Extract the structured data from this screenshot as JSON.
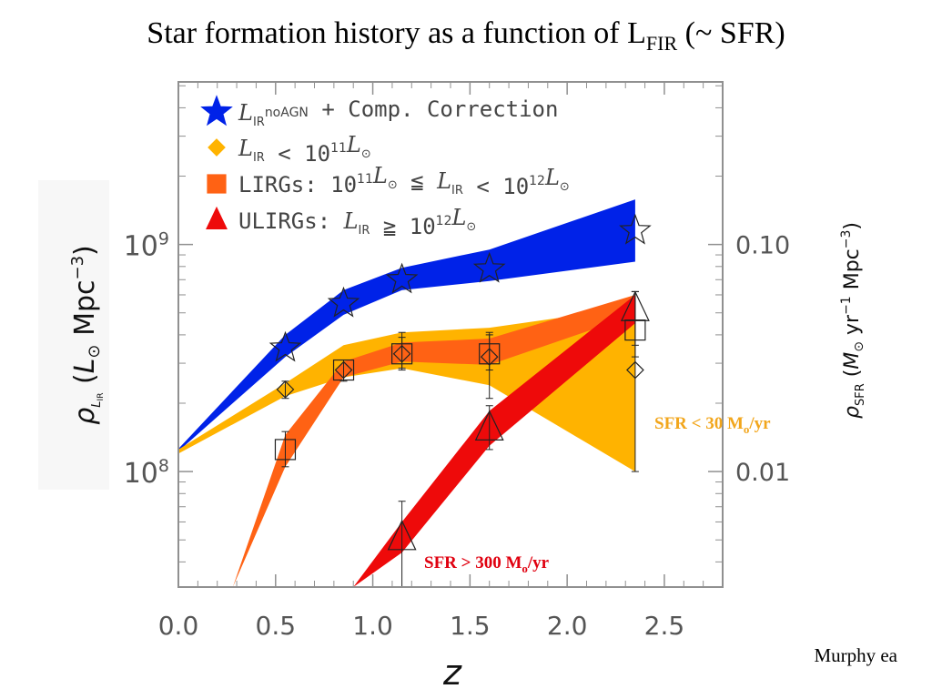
{
  "slide": {
    "title_main": "Star formation history as a function of L",
    "title_sub": "FIR",
    "title_tail": " (~ SFR)",
    "credit": "Murphy ea"
  },
  "annotations": {
    "sfr_low": {
      "text": "SFR < 30 M",
      "sub": "o",
      "unit": "/yr"
    },
    "sfr_high": {
      "text": "SFR > 300 M",
      "sub": "o",
      "unit": "/yr"
    }
  },
  "colors": {
    "all_ir": "#0022e8",
    "low_lir": "#ffb300",
    "lirg": "#ff6214",
    "ulirg": "#ee0a0a",
    "axis": "#909090",
    "sfr_low_text": "#f2a61c",
    "sfr_high_text": "#e0000f"
  },
  "chart_data": {
    "type": "area",
    "xlabel": "z",
    "ylabel": "ρ_{L_IR} (L_⊙ Mpc^-3)",
    "y2label": "ρ_SFR (M_⊙ yr^-1 Mpc^-3)",
    "xlim": [
      0.0,
      2.8
    ],
    "ylim": [
      31000000.0,
      5200000000.0
    ],
    "yscale": "log",
    "x_ticks": [
      "0.0",
      "0.5",
      "1.0",
      "1.5",
      "2.0",
      "2.5"
    ],
    "y_ticks": [
      "10^8",
      "10^9"
    ],
    "y2_ticks": [
      "0.01",
      "0.10"
    ],
    "legend_position": "top-left",
    "grid": false,
    "series": [
      {
        "name": "L_IR^noAGN + Comp. Correction",
        "marker": "star",
        "color_key": "all_ir",
        "band": {
          "x": [
            0.0,
            0.55,
            0.85,
            1.15,
            1.6,
            2.35
          ],
          "lo": [
            123000000.0,
            320000000.0,
            490000000.0,
            630000000.0,
            690000000.0,
            840000000.0
          ],
          "hi": [
            126000000.0,
            400000000.0,
            630000000.0,
            790000000.0,
            950000000.0,
            1580000000.0
          ]
        },
        "points": [
          {
            "x": 0.55,
            "y": 350000000.0
          },
          {
            "x": 0.85,
            "y": 550000000.0
          },
          {
            "x": 1.15,
            "y": 700000000.0
          },
          {
            "x": 1.6,
            "y": 780000000.0
          },
          {
            "x": 2.35,
            "y": 1150000000.0
          }
        ]
      },
      {
        "name": "L_IR < 10^11 L_⊙",
        "marker": "diamond",
        "color_key": "low_lir",
        "band": {
          "x": [
            0.0,
            0.55,
            0.85,
            1.15,
            1.6,
            2.35
          ],
          "lo": [
            120000000.0,
            215000000.0,
            260000000.0,
            285000000.0,
            240000000.0,
            100000000.0
          ],
          "hi": [
            125000000.0,
            245000000.0,
            360000000.0,
            410000000.0,
            430000000.0,
            530000000.0
          ]
        },
        "points": [
          {
            "x": 0.55,
            "y": 230000000.0,
            "err": [
              210000000.0,
              250000000.0
            ]
          },
          {
            "x": 0.85,
            "y": 280000000.0
          },
          {
            "x": 1.15,
            "y": 330000000.0,
            "err": [
              280000000.0,
              390000000.0
            ]
          },
          {
            "x": 1.6,
            "y": 320000000.0,
            "err": [
              210000000.0,
              400000000.0
            ]
          },
          {
            "x": 2.35,
            "y": 280000000.0,
            "err": [
              100000000.0,
              620000000.0
            ]
          }
        ]
      },
      {
        "name": "LIRGs: 10^11 L_⊙ ≦ L_IR < 10^12 L_⊙",
        "marker": "square",
        "color_key": "lirg",
        "band": {
          "x": [
            0.28,
            0.55,
            0.85,
            1.15,
            1.6,
            2.35
          ],
          "lo": [
            31000000.0,
            105000000.0,
            260000000.0,
            305000000.0,
            295000000.0,
            490000000.0
          ],
          "hi": [
            31000000.0,
            145000000.0,
            305000000.0,
            370000000.0,
            385000000.0,
            600000000.0
          ]
        },
        "points": [
          {
            "x": 0.55,
            "y": 125000000.0,
            "err": [
              105000000.0,
              150000000.0
            ]
          },
          {
            "x": 0.85,
            "y": 280000000.0,
            "err": [
              250000000.0,
              310000000.0
            ]
          },
          {
            "x": 1.15,
            "y": 330000000.0,
            "err": [
              285000000.0,
              410000000.0
            ]
          },
          {
            "x": 1.6,
            "y": 330000000.0,
            "err": [
              280000000.0,
              410000000.0
            ]
          },
          {
            "x": 2.35,
            "y": 420000000.0,
            "err": [
              320000000.0,
              620000000.0
            ]
          }
        ]
      },
      {
        "name": "ULIRGs: L_IR ≧ 10^12 L_⊙",
        "marker": "triangle",
        "color_key": "ulirg",
        "band": {
          "x": [
            0.9,
            1.15,
            1.6,
            2.35
          ],
          "lo": [
            31000000.0,
            44000000.0,
            130000000.0,
            450000000.0
          ],
          "hi": [
            31000000.0,
            60000000.0,
            185000000.0,
            600000000.0
          ]
        },
        "points": [
          {
            "x": 1.15,
            "y": 51000000.0,
            "err": [
              31000000.0,
              74000000.0
            ]
          },
          {
            "x": 1.6,
            "y": 155000000.0,
            "err": [
              125000000.0,
              195000000.0
            ]
          },
          {
            "x": 2.35,
            "y": 520000000.0,
            "err": [
              360000000.0,
              620000000.0
            ]
          }
        ]
      }
    ]
  }
}
